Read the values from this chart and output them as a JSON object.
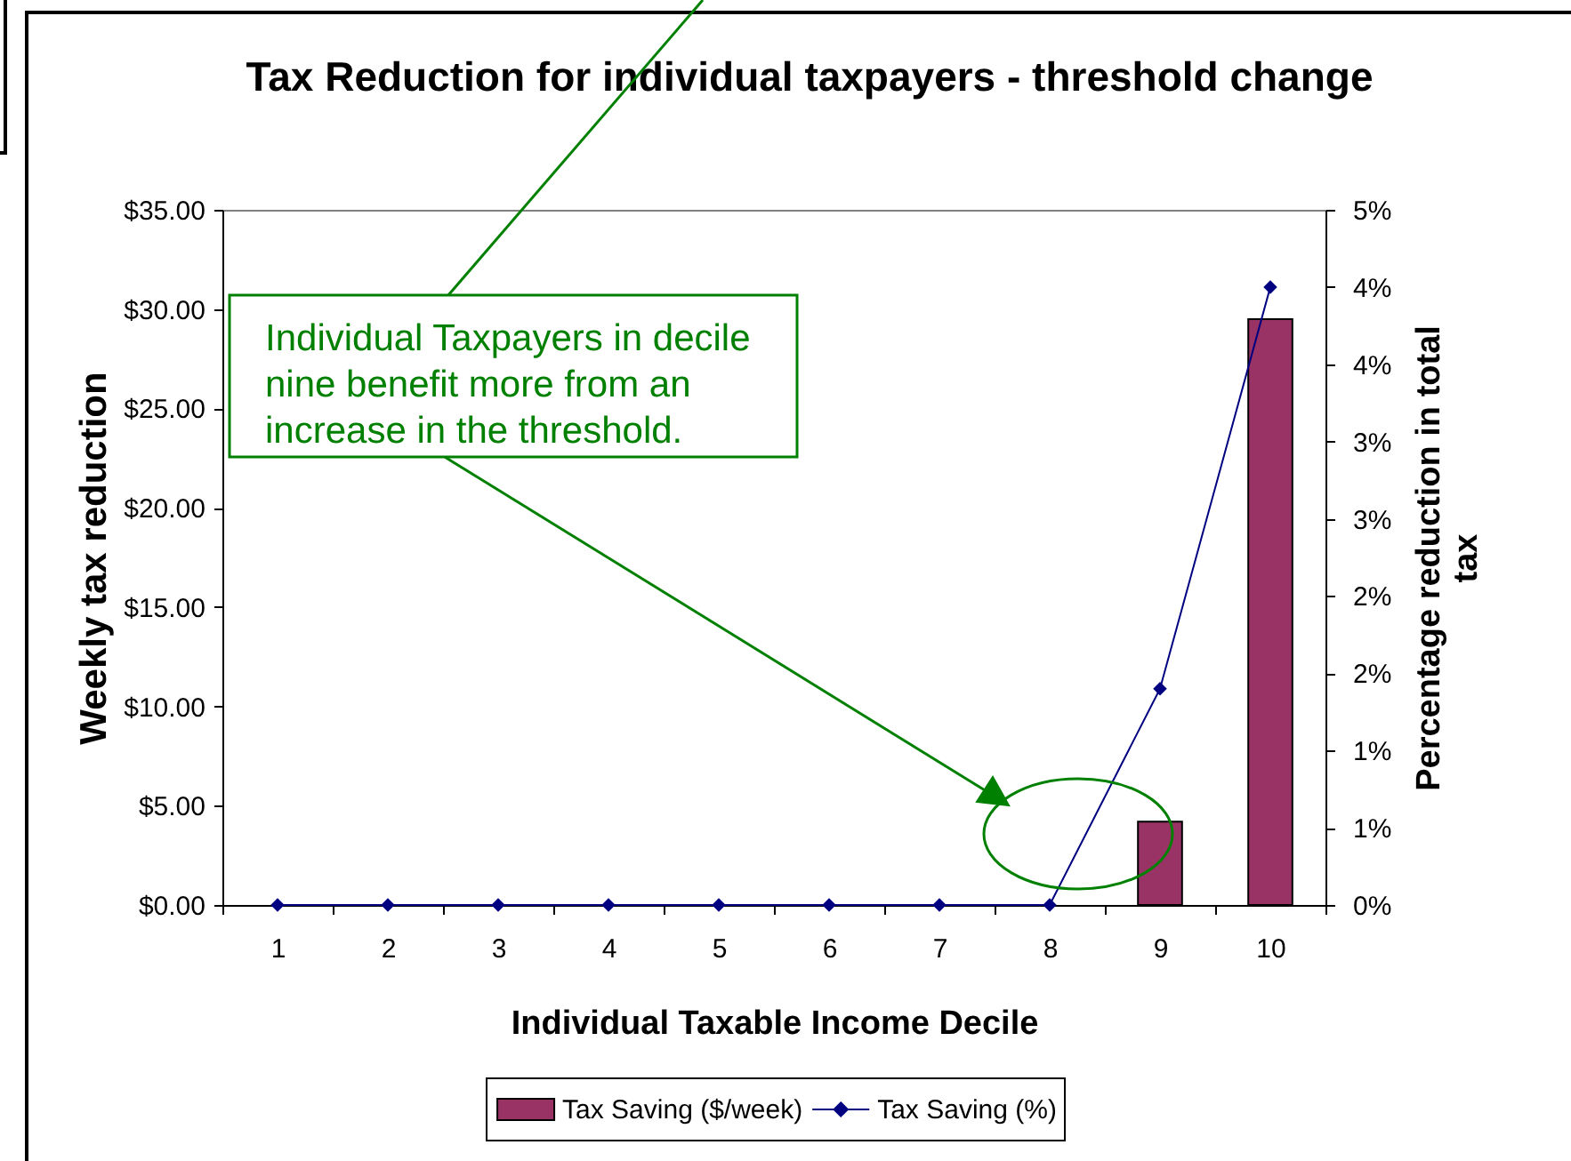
{
  "chart_data": {
    "type": "bar",
    "title": "Tax Reduction for individual taxpayers - threshold change",
    "xlabel": "Individual Taxable Income Decile",
    "ylabel": "Weekly tax reduction",
    "y2label": "Percentage reduction in total tax",
    "categories": [
      "1",
      "2",
      "3",
      "4",
      "5",
      "6",
      "7",
      "8",
      "9",
      "10"
    ],
    "series": [
      {
        "name": "Tax Saving ($/week)",
        "type": "bar",
        "color": "#993366",
        "values": [
          0,
          0,
          0,
          0,
          0,
          0,
          0,
          0,
          4.2,
          29.5
        ]
      },
      {
        "name": "Tax Saving (%)",
        "type": "line",
        "axis": "y2",
        "color": "#000080",
        "values": [
          0,
          0,
          0,
          0,
          0,
          0,
          0,
          0,
          1.4,
          4.0
        ]
      }
    ],
    "ylim": [
      0,
      35
    ],
    "yticks": [
      {
        "value": 0,
        "label": "$0.00"
      },
      {
        "value": 5,
        "label": "$5.00"
      },
      {
        "value": 10,
        "label": "$10.00"
      },
      {
        "value": 15,
        "label": "$15.00"
      },
      {
        "value": 20,
        "label": "$20.00"
      },
      {
        "value": 25,
        "label": "$25.00"
      },
      {
        "value": 30,
        "label": "$30.00"
      },
      {
        "value": 35,
        "label": "$35.00"
      }
    ],
    "y2lim": [
      0,
      4.5
    ],
    "y2ticks": [
      {
        "value": 0,
        "label": "0%"
      },
      {
        "value": 0.5,
        "label": "1%"
      },
      {
        "value": 1,
        "label": "1%"
      },
      {
        "value": 1.5,
        "label": "2%"
      },
      {
        "value": 2,
        "label": "2%"
      },
      {
        "value": 2.5,
        "label": "3%"
      },
      {
        "value": 3,
        "label": "3%"
      },
      {
        "value": 3.5,
        "label": "4%"
      },
      {
        "value": 4,
        "label": "4%"
      },
      {
        "value": 4.5,
        "label": "5%"
      }
    ],
    "marker": "diamond",
    "legend": "bottom",
    "annotations": [
      "Individual Taxpayers in decile nine benefit more from an increase in the threshold."
    ]
  }
}
